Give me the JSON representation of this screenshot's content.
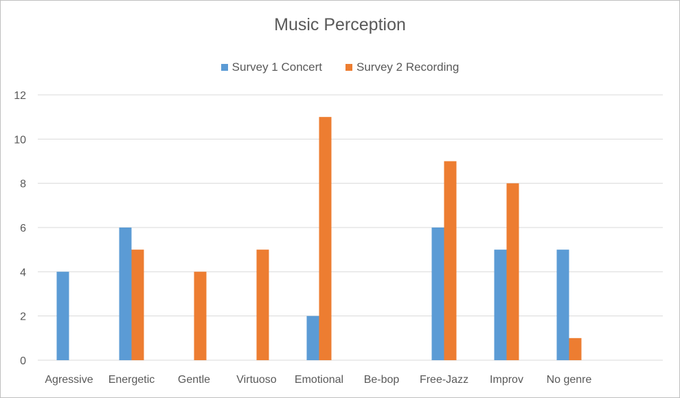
{
  "chart_data": {
    "type": "bar",
    "title": "Music Perception",
    "categories": [
      "Agressive",
      "Energetic",
      "Gentle",
      "Virtuoso",
      "Emotional",
      "Be-bop",
      "Free-Jazz",
      "Improv",
      "No genre"
    ],
    "series": [
      {
        "name": "Survey 1 Concert",
        "color": "#5b9bd5",
        "values": [
          4,
          6,
          0,
          0,
          2,
          0,
          6,
          5,
          5
        ]
      },
      {
        "name": "Survey 2 Recording",
        "color": "#ed7d31",
        "values": [
          0,
          5,
          4,
          5,
          11,
          0,
          9,
          8,
          1
        ]
      }
    ],
    "y_ticks": [
      "0",
      "2",
      "4",
      "6",
      "8",
      "10",
      "12"
    ],
    "ylim": [
      0,
      12
    ],
    "grid": true,
    "legend_position": "top-center"
  }
}
